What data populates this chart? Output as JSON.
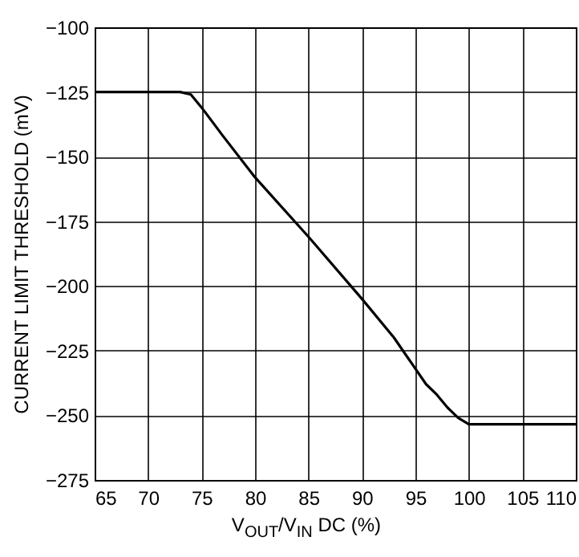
{
  "chart_data": {
    "type": "line",
    "xlabel": "V$_{OUT}$/V$_{IN}$ DC (%)",
    "ylabel": "CURRENT LIMIT THRESHOLD (mV)",
    "x": [
      65,
      73,
      74,
      75,
      77,
      80,
      85,
      90,
      93,
      95,
      96,
      97,
      98,
      99,
      100,
      110
    ],
    "series": [
      {
        "color": "#000000",
        "values": [
          -125,
          -125,
          -126,
          -131,
          -142,
          -158,
          -181,
          -205,
          -220,
          -232,
          -238,
          -242,
          -247,
          -251,
          -253.5,
          -253.5
        ]
      }
    ],
    "xlim": [
      65,
      110
    ],
    "xticks": [
      65,
      70,
      75,
      80,
      85,
      90,
      95,
      100,
      105,
      110
    ],
    "ylim": [
      -275,
      -100
    ],
    "yticks": [
      -275,
      -250,
      -225,
      -200,
      -175,
      -150,
      -125,
      -100
    ],
    "grid": true,
    "legend": false,
    "marker": "none",
    "line_style": "solid"
  }
}
